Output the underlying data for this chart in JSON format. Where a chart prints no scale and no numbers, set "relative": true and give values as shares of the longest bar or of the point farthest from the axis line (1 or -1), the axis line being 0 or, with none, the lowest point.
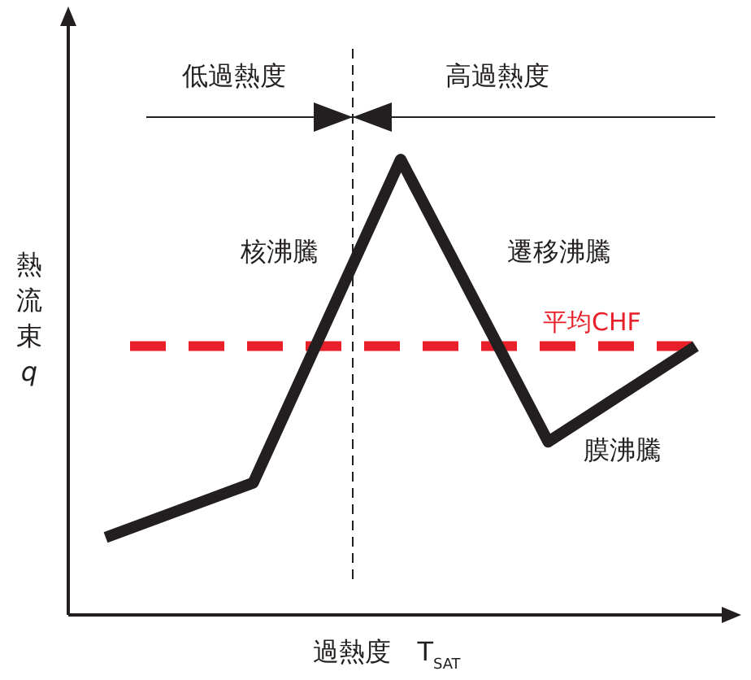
{
  "chart_data": {
    "type": "line",
    "relative": true,
    "categories": [
      null,
      null,
      null,
      null,
      null
    ],
    "series": [
      {
        "color": "#231f20",
        "values": [
          0.17,
          0.29,
          1,
          0.38,
          0.59
        ]
      }
    ],
    "xlabel": "過熱度　T$_{SAT}$",
    "ylabel": "熱流束 q",
    "annotations": [
      "低過熱度",
      "高過熱度",
      "核沸騰",
      "遷移沸騰",
      "膜沸騰"
    ],
    "ref_lines": [
      {
        "axis": "y",
        "value": 0.59,
        "label": "平均CHF",
        "color": "#e8202a",
        "line_style": "dashed"
      }
    ],
    "line_style": "solid"
  }
}
